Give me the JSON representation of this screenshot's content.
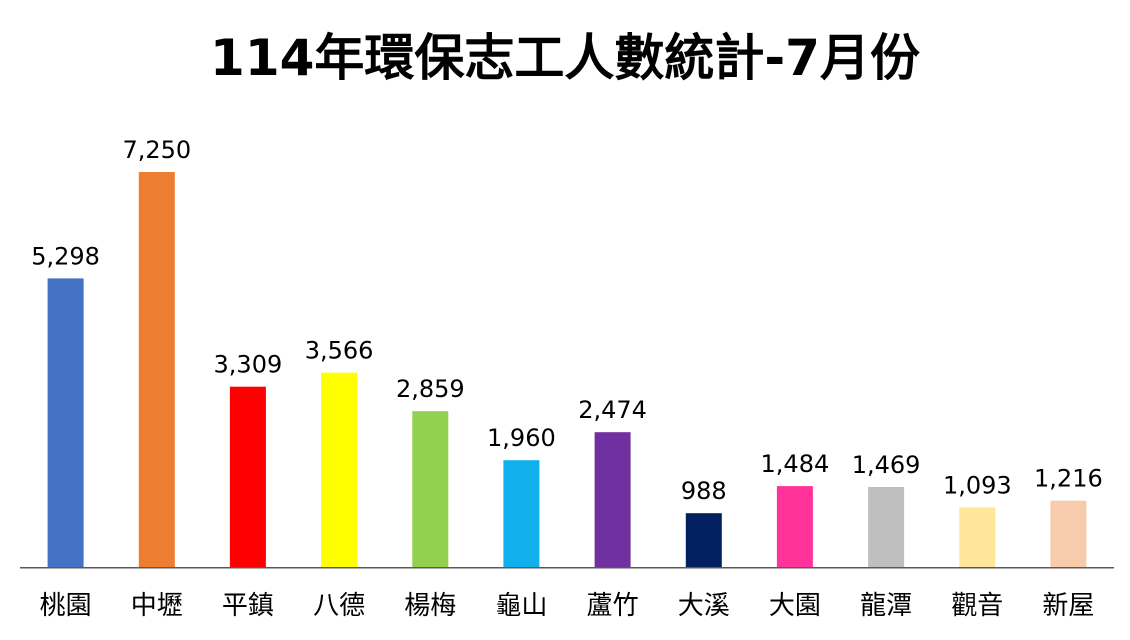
{
  "chart_data": {
    "type": "bar",
    "title": "114年環保志工人數統計-7月份",
    "xlabel": "",
    "ylabel": "",
    "categories": [
      "桃園",
      "中壢",
      "平鎮",
      "八德",
      "楊梅",
      "龜山",
      "蘆竹",
      "大溪",
      "大園",
      "龍潭",
      "觀音",
      "新屋"
    ],
    "values": [
      5298,
      7250,
      3309,
      3566,
      2859,
      1960,
      2474,
      988,
      1484,
      1469,
      1093,
      1216
    ],
    "value_labels": [
      "5,298",
      "7,250",
      "3,309",
      "3,566",
      "2,859",
      "1,960",
      "2,474",
      "988",
      "1,484",
      "1,469",
      "1,093",
      "1,216"
    ],
    "colors": [
      "#4472C4",
      "#ED7D31",
      "#FF0000",
      "#FFFF00",
      "#92D050",
      "#11B0EC",
      "#7030A0",
      "#002060",
      "#FF3399",
      "#BFBFBF",
      "#FFE699",
      "#F8CBAD"
    ],
    "ylim": [
      0,
      8000
    ],
    "grid": false,
    "legend": "none"
  }
}
